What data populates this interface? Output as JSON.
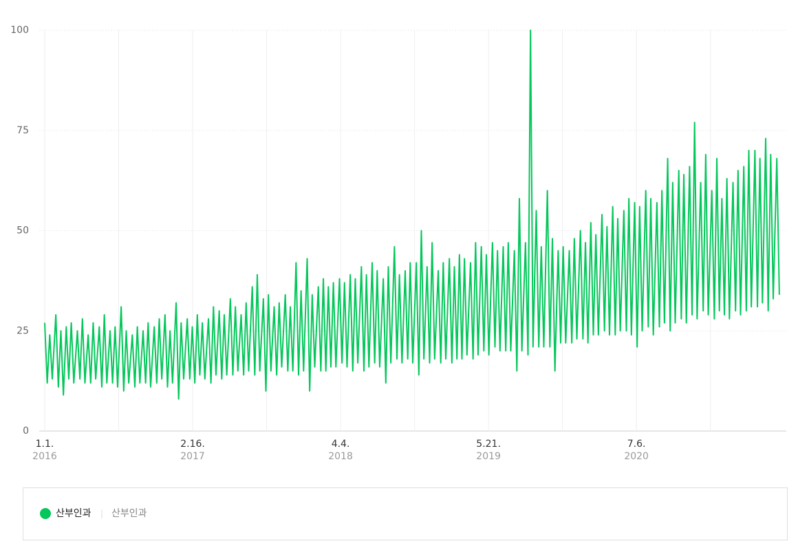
{
  "chart_data": {
    "type": "line",
    "color": "#03c75a",
    "ylim": [
      0,
      100
    ],
    "yticks": [
      0,
      25,
      50,
      75,
      100
    ],
    "grid": true,
    "xlim": [
      "2016-01-01",
      "2021-08-14"
    ],
    "xticks": [
      {
        "value": "2016-01-01",
        "label": "1.1.",
        "year": "2016"
      },
      {
        "value": "2016-07-25",
        "label": null
      },
      {
        "value": "2017-02-16",
        "label": "2.16.",
        "year": "2017"
      },
      {
        "value": "2017-09-10",
        "label": null
      },
      {
        "value": "2018-04-04",
        "label": "4.4.",
        "year": "2018"
      },
      {
        "value": "2018-10-27",
        "label": null
      },
      {
        "value": "2019-05-21",
        "label": "5.21.",
        "year": "2019"
      },
      {
        "value": "2019-12-13",
        "label": null
      },
      {
        "value": "2020-07-06",
        "label": "7.6.",
        "year": "2020"
      },
      {
        "value": "2021-01-28",
        "label": null
      }
    ],
    "legend_group": "산부인과",
    "x": [
      "2016-01-01",
      "2016-01-08",
      "2016-01-15",
      "2016-01-22",
      "2016-02-01",
      "2016-02-08",
      "2016-02-15",
      "2016-02-22",
      "2016-03-01",
      "2016-03-08",
      "2016-03-15",
      "2016-03-22",
      "2016-04-01",
      "2016-04-08",
      "2016-04-15",
      "2016-04-22",
      "2016-05-01",
      "2016-05-08",
      "2016-05-15",
      "2016-05-22",
      "2016-06-01",
      "2016-06-08",
      "2016-06-15",
      "2016-06-22",
      "2016-07-01",
      "2016-07-08",
      "2016-07-15",
      "2016-07-22",
      "2016-08-01",
      "2016-08-08",
      "2016-08-15",
      "2016-08-22",
      "2016-09-01",
      "2016-09-08",
      "2016-09-15",
      "2016-09-22",
      "2016-10-01",
      "2016-10-08",
      "2016-10-15",
      "2016-10-22",
      "2016-11-01",
      "2016-11-08",
      "2016-11-15",
      "2016-11-22",
      "2016-12-01",
      "2016-12-08",
      "2016-12-15",
      "2016-12-22",
      "2017-01-01",
      "2017-01-08",
      "2017-01-15",
      "2017-01-22",
      "2017-02-01",
      "2017-02-08",
      "2017-02-15",
      "2017-02-22",
      "2017-03-01",
      "2017-03-08",
      "2017-03-15",
      "2017-03-22",
      "2017-04-01",
      "2017-04-08",
      "2017-04-15",
      "2017-04-22",
      "2017-05-01",
      "2017-05-08",
      "2017-05-15",
      "2017-05-22",
      "2017-06-01",
      "2017-06-08",
      "2017-06-15",
      "2017-06-22",
      "2017-07-01",
      "2017-07-08",
      "2017-07-15",
      "2017-07-22",
      "2017-08-01",
      "2017-08-08",
      "2017-08-15",
      "2017-08-22",
      "2017-09-01",
      "2017-09-08",
      "2017-09-15",
      "2017-09-22",
      "2017-10-01",
      "2017-10-08",
      "2017-10-15",
      "2017-10-22",
      "2017-11-01",
      "2017-11-08",
      "2017-11-15",
      "2017-11-22",
      "2017-12-01",
      "2017-12-08",
      "2017-12-15",
      "2017-12-22",
      "2018-01-01",
      "2018-01-08",
      "2018-01-15",
      "2018-01-22",
      "2018-02-01",
      "2018-02-08",
      "2018-02-15",
      "2018-02-22",
      "2018-03-01",
      "2018-03-08",
      "2018-03-15",
      "2018-03-22",
      "2018-04-01",
      "2018-04-08",
      "2018-04-15",
      "2018-04-22",
      "2018-05-01",
      "2018-05-08",
      "2018-05-15",
      "2018-05-22",
      "2018-06-01",
      "2018-06-08",
      "2018-06-15",
      "2018-06-22",
      "2018-07-01",
      "2018-07-08",
      "2018-07-15",
      "2018-07-22",
      "2018-08-01",
      "2018-08-08",
      "2018-08-15",
      "2018-08-22",
      "2018-09-01",
      "2018-09-08",
      "2018-09-15",
      "2018-09-22",
      "2018-10-01",
      "2018-10-08",
      "2018-10-15",
      "2018-10-22",
      "2018-11-01",
      "2018-11-08",
      "2018-11-15",
      "2018-11-22",
      "2018-12-01",
      "2018-12-08",
      "2018-12-15",
      "2018-12-22",
      "2019-01-01",
      "2019-01-08",
      "2019-01-15",
      "2019-01-22",
      "2019-02-01",
      "2019-02-08",
      "2019-02-15",
      "2019-02-22",
      "2019-03-01",
      "2019-03-08",
      "2019-03-15",
      "2019-03-22",
      "2019-04-01",
      "2019-04-08",
      "2019-04-15",
      "2019-04-22",
      "2019-05-01",
      "2019-05-08",
      "2019-05-15",
      "2019-05-22",
      "2019-06-01",
      "2019-06-08",
      "2019-06-15",
      "2019-06-22",
      "2019-07-01",
      "2019-07-08",
      "2019-07-15",
      "2019-07-22",
      "2019-08-01",
      "2019-08-08",
      "2019-08-15",
      "2019-08-22",
      "2019-09-01",
      "2019-09-08",
      "2019-09-15",
      "2019-09-22",
      "2019-10-01",
      "2019-10-08",
      "2019-10-15",
      "2019-10-22",
      "2019-11-01",
      "2019-11-08",
      "2019-11-15",
      "2019-11-22",
      "2019-12-01",
      "2019-12-08",
      "2019-12-15",
      "2019-12-22",
      "2020-01-01",
      "2020-01-08",
      "2020-01-15",
      "2020-01-22",
      "2020-02-01",
      "2020-02-08",
      "2020-02-15",
      "2020-02-22",
      "2020-03-01",
      "2020-03-08",
      "2020-03-15",
      "2020-03-22",
      "2020-04-01",
      "2020-04-08",
      "2020-04-15",
      "2020-04-22",
      "2020-05-01",
      "2020-05-08",
      "2020-05-15",
      "2020-05-22",
      "2020-06-01",
      "2020-06-08",
      "2020-06-15",
      "2020-06-22",
      "2020-07-01",
      "2020-07-08",
      "2020-07-15",
      "2020-07-22",
      "2020-08-01",
      "2020-08-08",
      "2020-08-15",
      "2020-08-22",
      "2020-09-01",
      "2020-09-08",
      "2020-09-15",
      "2020-09-22",
      "2020-10-01",
      "2020-10-08",
      "2020-10-15",
      "2020-10-22",
      "2020-11-01",
      "2020-11-08",
      "2020-11-15",
      "2020-11-22",
      "2020-12-01",
      "2020-12-08",
      "2020-12-15",
      "2020-12-22",
      "2021-01-01",
      "2021-01-08",
      "2021-01-15",
      "2021-01-22",
      "2021-02-01",
      "2021-02-08",
      "2021-02-15",
      "2021-02-22",
      "2021-03-01",
      "2021-03-08",
      "2021-03-15",
      "2021-03-22",
      "2021-04-01",
      "2021-04-08",
      "2021-04-15",
      "2021-04-22",
      "2021-05-01",
      "2021-05-08",
      "2021-05-15",
      "2021-05-22",
      "2021-06-01",
      "2021-06-08",
      "2021-06-15",
      "2021-06-22",
      "2021-07-01",
      "2021-07-08",
      "2021-07-15",
      "2021-07-22",
      "2021-08-01",
      "2021-08-08"
    ],
    "series": [
      {
        "name": "산부인과",
        "color": "#03c75a",
        "values": [
          27,
          12,
          24,
          13,
          29,
          11,
          25,
          9,
          26,
          13,
          27,
          12,
          25,
          13,
          28,
          12,
          24,
          12,
          27,
          13,
          26,
          11,
          29,
          12,
          25,
          12,
          26,
          11,
          31,
          10,
          25,
          12,
          24,
          11,
          26,
          12,
          25,
          12,
          27,
          11,
          26,
          12,
          28,
          13,
          29,
          11,
          25,
          12,
          32,
          8,
          27,
          13,
          28,
          13,
          26,
          12,
          29,
          14,
          27,
          13,
          28,
          12,
          31,
          14,
          30,
          13,
          29,
          14,
          33,
          14,
          31,
          15,
          29,
          14,
          32,
          15,
          36,
          14,
          39,
          15,
          33,
          10,
          34,
          15,
          31,
          14,
          32,
          16,
          34,
          15,
          31,
          15,
          42,
          14,
          35,
          15,
          43,
          10,
          34,
          16,
          36,
          15,
          38,
          15,
          36,
          16,
          37,
          16,
          38,
          17,
          37,
          16,
          39,
          15,
          38,
          17,
          41,
          15,
          39,
          16,
          42,
          17,
          40,
          16,
          38,
          12,
          41,
          17,
          46,
          18,
          39,
          17,
          40,
          18,
          42,
          17,
          42,
          14,
          50,
          18,
          41,
          17,
          47,
          18,
          40,
          17,
          42,
          18,
          43,
          17,
          41,
          18,
          44,
          18,
          43,
          19,
          42,
          18,
          47,
          19,
          46,
          20,
          44,
          19,
          47,
          21,
          45,
          20,
          46,
          20,
          47,
          20,
          45,
          15,
          58,
          20,
          47,
          19,
          100,
          21,
          55,
          21,
          46,
          21,
          60,
          21,
          48,
          15,
          45,
          22,
          46,
          22,
          45,
          22,
          48,
          23,
          50,
          23,
          47,
          22,
          52,
          24,
          49,
          24,
          54,
          25,
          51,
          24,
          56,
          24,
          53,
          25,
          55,
          25,
          58,
          24,
          57,
          21,
          56,
          25,
          60,
          26,
          58,
          24,
          57,
          26,
          60,
          27,
          68,
          25,
          62,
          27,
          65,
          28,
          64,
          27,
          66,
          29,
          77,
          28,
          62,
          30,
          69,
          29,
          60,
          28,
          68,
          30,
          58,
          29,
          63,
          28,
          62,
          30,
          65,
          29,
          66,
          30,
          70,
          31,
          70,
          31,
          68,
          32,
          73,
          30,
          69,
          33,
          68,
          34
        ]
      }
    ]
  }
}
